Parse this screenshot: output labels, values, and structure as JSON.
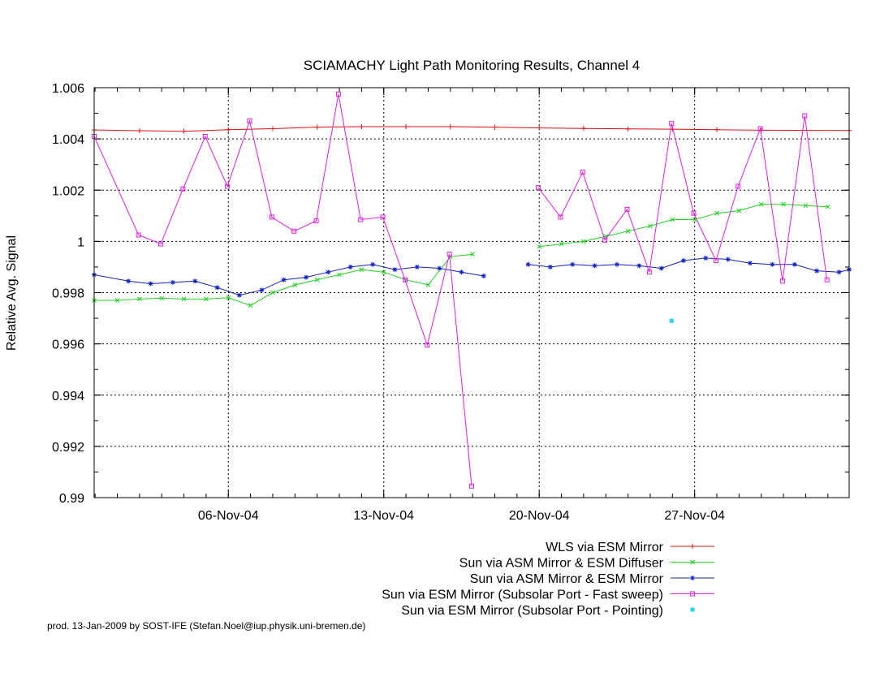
{
  "footer": "prod. 13-Jan-2009 by SOST-IFE (Stefan.Noel@iup.physik.uni-bremen.de)",
  "chart_data": {
    "type": "line",
    "title": "SCIAMACHY Light Path Monitoring Results, Channel 4",
    "xlabel": "",
    "ylabel": "Relative Avg. Signal",
    "x_unit": "date",
    "xlim": [
      "2004-10-30T23:00",
      "2004-12-03T23:00"
    ],
    "ylim": [
      0.99,
      1.006
    ],
    "x_ticks": [
      {
        "x": "2004-11-06",
        "label": "06-Nov-04"
      },
      {
        "x": "2004-11-13",
        "label": "13-Nov-04"
      },
      {
        "x": "2004-11-20",
        "label": "20-Nov-04"
      },
      {
        "x": "2004-11-27",
        "label": "27-Nov-04"
      }
    ],
    "y_ticks": [
      {
        "y": 0.99,
        "label": "0.99"
      },
      {
        "y": 0.992,
        "label": "0.992"
      },
      {
        "y": 0.994,
        "label": "0.994"
      },
      {
        "y": 0.996,
        "label": "0.996"
      },
      {
        "y": 0.998,
        "label": "0.998"
      },
      {
        "y": 1.0,
        "label": "1"
      },
      {
        "y": 1.002,
        "label": "1.002"
      },
      {
        "y": 1.004,
        "label": "1.004"
      },
      {
        "y": 1.006,
        "label": "1.006"
      }
    ],
    "grid": true,
    "legend_position": "bottom-right",
    "series": [
      {
        "name": "WLS via ESM Mirror",
        "color": "#e01010",
        "marker": "plus",
        "x": [
          "2004-10-30T23:00",
          "2004-11-02T00:00",
          "2004-11-04T00:00",
          "2004-11-06T00:00",
          "2004-11-08T00:00",
          "2004-11-10T00:00",
          "2004-11-12T00:00",
          "2004-11-14T00:00",
          "2004-11-16T00:00",
          "2004-11-18T00:00",
          "2004-11-20T00:00",
          "2004-11-22T00:00",
          "2004-11-24T00:00",
          "2004-11-26T00:00",
          "2004-11-28T00:00",
          "2004-11-30T00:00",
          "2004-12-03T23:00"
        ],
        "y": [
          1.00435,
          1.00432,
          1.0043,
          1.00436,
          1.0044,
          1.00446,
          1.00448,
          1.00448,
          1.00448,
          1.00446,
          1.00443,
          1.00441,
          1.00439,
          1.00438,
          1.00436,
          1.00434,
          1.00433
        ]
      },
      {
        "name": "Sun via ASM Mirror & ESM Diffuser",
        "color": "#20d020",
        "marker": "cross",
        "x": [
          "2004-10-30T23:00",
          "2004-11-01T00:00",
          "2004-11-02T00:00",
          "2004-11-03T00:00",
          "2004-11-04T00:00",
          "2004-11-05T00:00",
          "2004-11-06T00:00",
          "2004-11-07T00:00",
          "2004-11-08T00:00",
          "2004-11-09T00:00",
          "2004-11-10T00:00",
          "2004-11-11T00:00",
          "2004-11-12T00:00",
          "2004-11-13T00:00",
          "2004-11-14T00:00",
          "2004-11-15T00:00",
          "2004-11-16T00:00",
          "2004-11-17T00:00",
          null,
          "2004-11-20T00:00",
          "2004-11-21T00:00",
          "2004-11-22T00:00",
          "2004-11-23T00:00",
          "2004-11-24T00:00",
          "2004-11-25T00:00",
          "2004-11-26T00:00",
          "2004-11-27T00:00",
          "2004-11-28T00:00",
          "2004-11-29T00:00",
          "2004-11-30T00:00",
          "2004-12-01T00:00",
          "2004-12-02T00:00",
          "2004-12-03T00:00"
        ],
        "y": [
          0.9977,
          0.9977,
          0.99775,
          0.99778,
          0.99775,
          0.99775,
          0.9978,
          0.9975,
          0.998,
          0.9983,
          0.9985,
          0.9987,
          0.9989,
          0.9988,
          0.9985,
          0.9983,
          0.9994,
          0.9995,
          null,
          0.9998,
          0.9999,
          1.0,
          1.0002,
          1.0004,
          1.0006,
          1.00085,
          1.00085,
          1.0011,
          1.0012,
          1.00145,
          1.00145,
          1.0014,
          1.00135
        ]
      },
      {
        "name": "Sun via ASM Mirror & ESM Mirror",
        "color": "#1020c0",
        "marker": "star",
        "x": [
          "2004-10-30T23:00",
          "2004-11-01T12:00",
          "2004-11-02T12:00",
          "2004-11-03T12:00",
          "2004-11-04T12:00",
          "2004-11-05T12:00",
          "2004-11-06T12:00",
          "2004-11-07T12:00",
          "2004-11-08T12:00",
          "2004-11-09T12:00",
          "2004-11-10T12:00",
          "2004-11-11T12:00",
          "2004-11-12T12:00",
          "2004-11-13T12:00",
          "2004-11-14T12:00",
          "2004-11-15T12:00",
          "2004-11-16T12:00",
          "2004-11-17T12:00",
          null,
          "2004-11-19T12:00",
          "2004-11-20T12:00",
          "2004-11-21T12:00",
          "2004-11-22T12:00",
          "2004-11-23T12:00",
          "2004-11-24T12:00",
          "2004-11-25T12:00",
          "2004-11-26T12:00",
          "2004-11-27T12:00",
          "2004-11-28T12:00",
          "2004-11-29T12:00",
          "2004-11-30T12:00",
          "2004-12-01T12:00",
          "2004-12-02T12:00",
          "2004-12-03T12:00",
          "2004-12-03T23:00"
        ],
        "y": [
          0.9987,
          0.99845,
          0.99835,
          0.9984,
          0.99845,
          0.9982,
          0.9979,
          0.9981,
          0.9985,
          0.9986,
          0.9988,
          0.999,
          0.9991,
          0.9989,
          0.999,
          0.99895,
          0.9988,
          0.99865,
          null,
          0.9991,
          0.999,
          0.9991,
          0.99905,
          0.9991,
          0.99905,
          0.99895,
          0.99925,
          0.99935,
          0.9993,
          0.99915,
          0.9991,
          0.9991,
          0.99885,
          0.9988,
          0.9989
        ]
      },
      {
        "name": "Sun via ESM Mirror (Subsolar Port - Fast sweep)",
        "color": "#e020e0",
        "marker": "square",
        "x": [
          "2004-10-30T23:00",
          "2004-11-01T23:00",
          "2004-11-02T23:00",
          "2004-11-03T23:00",
          "2004-11-04T23:00",
          "2004-11-05T23:00",
          "2004-11-06T23:00",
          "2004-11-07T23:00",
          "2004-11-08T23:00",
          "2004-11-09T23:00",
          "2004-11-10T23:00",
          "2004-11-11T23:00",
          "2004-11-12T23:00",
          "2004-11-13T23:00",
          "2004-11-14T23:00",
          "2004-11-15T23:00",
          "2004-11-16T23:00",
          null,
          "2004-11-19T23:00",
          "2004-11-20T23:00",
          "2004-11-21T23:00",
          "2004-11-22T23:00",
          "2004-11-23T23:00",
          "2004-11-24T23:00",
          "2004-11-25T23:00",
          "2004-11-26T23:00",
          "2004-11-27T23:00",
          "2004-11-28T23:00",
          "2004-11-29T23:00",
          "2004-11-30T23:00",
          "2004-12-01T23:00",
          "2004-12-02T23:00"
        ],
        "y": [
          1.0041,
          1.00025,
          0.9999,
          1.00205,
          1.0041,
          1.00215,
          1.0047,
          1.00095,
          1.0004,
          1.0008,
          1.00575,
          1.00085,
          1.00095,
          0.9985,
          0.99595,
          0.9995,
          0.99045,
          null,
          1.0021,
          1.00095,
          1.0027,
          1.00005,
          1.00125,
          0.9988,
          1.0046,
          1.0011,
          0.99925,
          1.00215,
          1.0044,
          0.99845,
          1.0049,
          0.9985
        ]
      },
      {
        "name": "Sun via ESM Mirror (Subsolar Port - Pointing)",
        "color": "#20d8e8",
        "marker": "dot",
        "x": [
          "2004-11-25T23:00"
        ],
        "y": [
          0.9969
        ]
      }
    ]
  }
}
